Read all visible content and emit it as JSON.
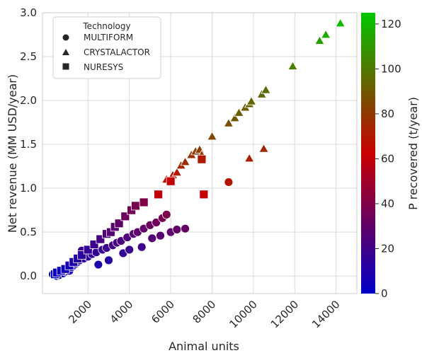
{
  "chart_data": {
    "type": "scatter",
    "xlabel": "Animal units",
    "ylabel": "Net revenue (MM USD/year)",
    "xlim": [
      -200,
      15000
    ],
    "ylim": [
      -0.2,
      3.0
    ],
    "xticks": [
      "2000",
      "4000",
      "6000",
      "8000",
      "10000",
      "12000",
      "14000"
    ],
    "yticks": [
      "0.0",
      "0.5",
      "1.0",
      "1.5",
      "2.0",
      "2.5",
      "3.0"
    ],
    "grid": true,
    "legend": {
      "title": "Technology",
      "placement": "top-left",
      "entries": [
        {
          "label": "MULTIFORM",
          "marker": "circle"
        },
        {
          "label": "CRYSTALACTOR",
          "marker": "triangle"
        },
        {
          "label": "NURESYS",
          "marker": "square"
        }
      ]
    },
    "colorbar": {
      "label": "P recovered (t/year)",
      "range": [
        0,
        125
      ],
      "ticks": [
        "0",
        "20",
        "40",
        "60",
        "80",
        "100",
        "120"
      ],
      "colors": [
        "#0000c8",
        "#c80000",
        "#00c800"
      ]
    },
    "series": [
      {
        "name": "MULTIFORM",
        "marker": "circle",
        "points": [
          [
            300,
            0.02,
            2
          ],
          [
            400,
            0.01,
            2
          ],
          [
            450,
            0.03,
            3
          ],
          [
            500,
            0.0,
            3
          ],
          [
            600,
            0.01,
            3
          ],
          [
            700,
            0.04,
            4
          ],
          [
            800,
            0.03,
            4
          ],
          [
            900,
            0.05,
            5
          ],
          [
            1000,
            0.07,
            6
          ],
          [
            1100,
            0.06,
            6
          ],
          [
            1200,
            0.1,
            7
          ],
          [
            1300,
            0.12,
            8
          ],
          [
            1400,
            0.14,
            9
          ],
          [
            1500,
            0.16,
            10
          ],
          [
            1600,
            0.18,
            11
          ],
          [
            1700,
            0.29,
            18
          ],
          [
            1800,
            0.2,
            12
          ],
          [
            2000,
            0.22,
            13
          ],
          [
            2200,
            0.25,
            15
          ],
          [
            2400,
            0.27,
            16
          ],
          [
            2500,
            0.13,
            10
          ],
          [
            2700,
            0.3,
            18
          ],
          [
            2900,
            0.32,
            19
          ],
          [
            3000,
            0.18,
            12
          ],
          [
            3200,
            0.35,
            21
          ],
          [
            3400,
            0.38,
            22
          ],
          [
            3600,
            0.4,
            23
          ],
          [
            3700,
            0.26,
            16
          ],
          [
            3900,
            0.44,
            25
          ],
          [
            4000,
            0.3,
            18
          ],
          [
            4200,
            0.48,
            27
          ],
          [
            4400,
            0.5,
            29
          ],
          [
            4600,
            0.33,
            20
          ],
          [
            4700,
            0.54,
            31
          ],
          [
            5000,
            0.58,
            33
          ],
          [
            5100,
            0.43,
            26
          ],
          [
            5300,
            0.61,
            35
          ],
          [
            5500,
            0.46,
            27
          ],
          [
            5600,
            0.66,
            37
          ],
          [
            5800,
            0.7,
            39
          ],
          [
            6000,
            0.5,
            29
          ],
          [
            6300,
            0.53,
            31
          ],
          [
            6700,
            0.54,
            32
          ],
          [
            8800,
            1.07,
            68
          ]
        ]
      },
      {
        "name": "CRYSTALACTOR",
        "marker": "triangle",
        "points": [
          [
            5800,
            1.1,
            65
          ],
          [
            6100,
            1.15,
            68
          ],
          [
            6300,
            1.18,
            70
          ],
          [
            6500,
            1.26,
            74
          ],
          [
            6700,
            1.3,
            76
          ],
          [
            7000,
            1.38,
            78
          ],
          [
            7200,
            1.42,
            80
          ],
          [
            7400,
            1.44,
            82
          ],
          [
            7500,
            1.38,
            79
          ],
          [
            8000,
            1.59,
            85
          ],
          [
            8800,
            1.74,
            88
          ],
          [
            9100,
            1.8,
            90
          ],
          [
            9300,
            1.86,
            91
          ],
          [
            9600,
            1.92,
            92
          ],
          [
            9800,
            1.96,
            93
          ],
          [
            9900,
            1.99,
            94
          ],
          [
            10400,
            2.07,
            95
          ],
          [
            10600,
            2.12,
            97
          ],
          [
            11900,
            2.39,
            102
          ],
          [
            13200,
            2.68,
            112
          ],
          [
            13500,
            2.75,
            115
          ],
          [
            14200,
            2.88,
            120
          ],
          [
            9800,
            1.34,
            72
          ],
          [
            10500,
            1.45,
            75
          ]
        ]
      },
      {
        "name": "NURESYS",
        "marker": "square",
        "points": [
          [
            400,
            0.02,
            2
          ],
          [
            500,
            0.04,
            3
          ],
          [
            700,
            0.06,
            4
          ],
          [
            900,
            0.08,
            5
          ],
          [
            1100,
            0.12,
            7
          ],
          [
            1300,
            0.16,
            9
          ],
          [
            1500,
            0.2,
            11
          ],
          [
            1700,
            0.24,
            13
          ],
          [
            2000,
            0.3,
            16
          ],
          [
            2300,
            0.36,
            19
          ],
          [
            2600,
            0.42,
            22
          ],
          [
            2900,
            0.48,
            25
          ],
          [
            3100,
            0.5,
            26
          ],
          [
            3300,
            0.56,
            28
          ],
          [
            3500,
            0.6,
            30
          ],
          [
            3800,
            0.68,
            33
          ],
          [
            4100,
            0.75,
            36
          ],
          [
            4300,
            0.8,
            38
          ],
          [
            4700,
            0.84,
            40
          ],
          [
            5400,
            0.93,
            60
          ],
          [
            6000,
            1.08,
            62
          ],
          [
            7500,
            1.33,
            70
          ],
          [
            7600,
            0.93,
            62
          ]
        ]
      }
    ]
  }
}
